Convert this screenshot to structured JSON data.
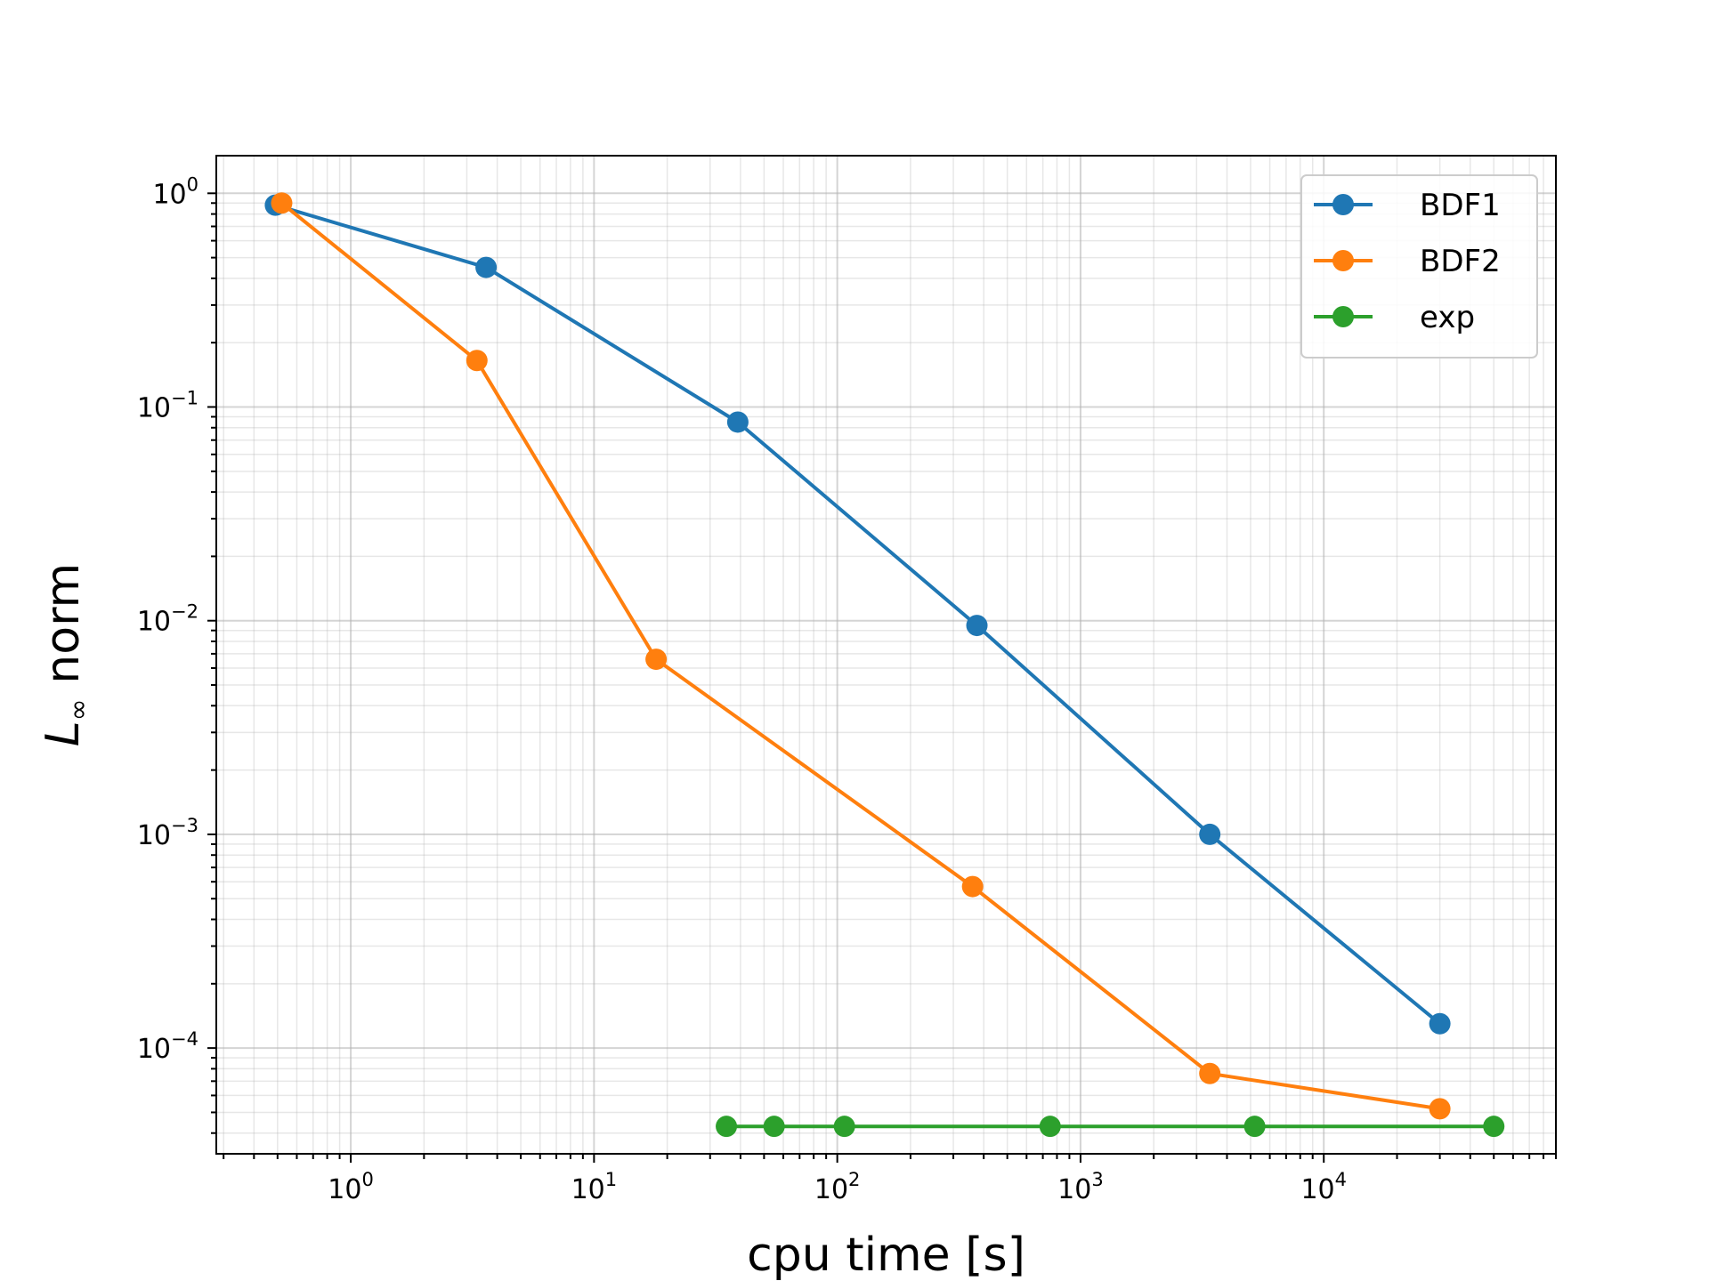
{
  "chart_data": {
    "type": "line",
    "title": "",
    "xlabel": "cpu time [s]",
    "ylabel_main": "L",
    "ylabel_sub": "∞",
    "ylabel_rest": " norm",
    "xscale": "log",
    "yscale": "log",
    "xlim": [
      0.28,
      90000
    ],
    "ylim": [
      3.2e-05,
      1.5
    ],
    "x_ticks": [
      {
        "value": 1,
        "base": "10",
        "exp": "0"
      },
      {
        "value": 10,
        "base": "10",
        "exp": "1"
      },
      {
        "value": 100,
        "base": "10",
        "exp": "2"
      },
      {
        "value": 1000,
        "base": "10",
        "exp": "3"
      },
      {
        "value": 10000,
        "base": "10",
        "exp": "4"
      }
    ],
    "y_ticks": [
      {
        "value": 1,
        "base": "10",
        "exp": "0"
      },
      {
        "value": 0.1,
        "base": "10",
        "exp": "−1"
      },
      {
        "value": 0.01,
        "base": "10",
        "exp": "−2"
      },
      {
        "value": 0.001,
        "base": "10",
        "exp": "−3"
      },
      {
        "value": 0.0001,
        "base": "10",
        "exp": "−4"
      }
    ],
    "grid": "major and minor",
    "legend_position": "top-right",
    "series": [
      {
        "name": "BDF1",
        "color": "#1f77b4",
        "marker": "circle",
        "x": [
          0.49,
          3.6,
          39,
          375,
          3400,
          30000
        ],
        "y": [
          0.88,
          0.45,
          0.085,
          0.0095,
          0.001,
          0.00013
        ]
      },
      {
        "name": "BDF2",
        "color": "#ff7f0e",
        "marker": "circle",
        "x": [
          0.52,
          3.3,
          18,
          360,
          3400,
          30000
        ],
        "y": [
          0.9,
          0.165,
          0.0066,
          0.00057,
          7.6e-05,
          5.2e-05
        ]
      },
      {
        "name": "exp",
        "color": "#2ca02c",
        "marker": "circle",
        "x": [
          35,
          55,
          107,
          750,
          5200,
          50000
        ],
        "y": [
          4.3e-05,
          4.3e-05,
          4.3e-05,
          4.3e-05,
          4.3e-05,
          4.3e-05
        ]
      }
    ]
  }
}
